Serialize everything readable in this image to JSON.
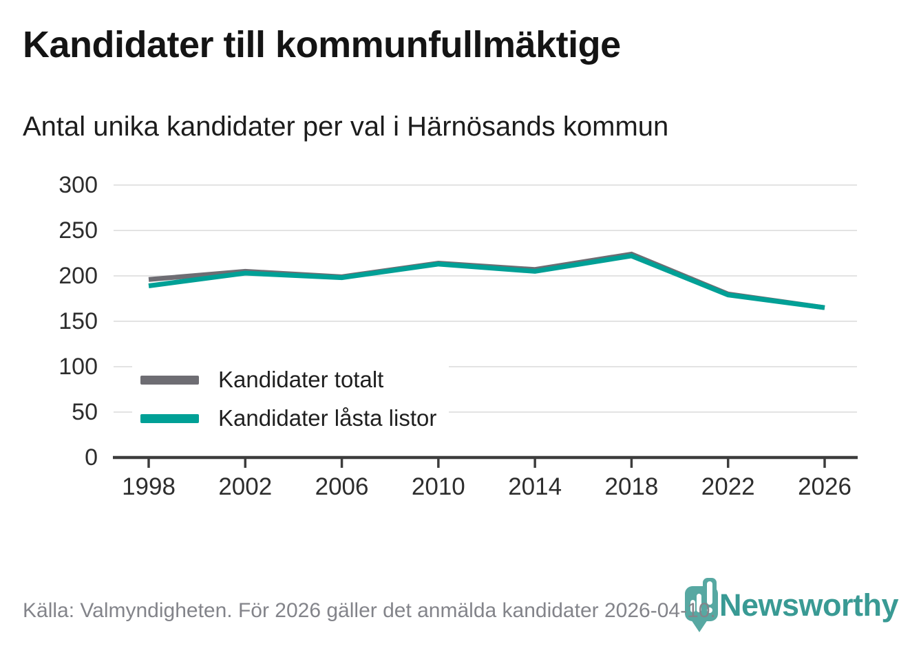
{
  "header": {
    "title": "Kandidater till kommunfullmäktige",
    "subtitle": "Antal unika kandidater per val i Härnösands kommun"
  },
  "chart_data": {
    "type": "line",
    "title": "Kandidater till kommunfullmäktige",
    "subtitle": "Antal unika kandidater per val i Härnösands kommun",
    "x": [
      1998,
      2002,
      2006,
      2010,
      2014,
      2018,
      2022,
      2026
    ],
    "series": [
      {
        "name": "Kandidater totalt",
        "color": "#6e6d73",
        "values": [
          196,
          205,
          199,
          214,
          207,
          224,
          180,
          165
        ]
      },
      {
        "name": "Kandidater låsta listor",
        "color": "#00a096",
        "values": [
          189,
          203,
          198,
          213,
          205,
          222,
          179,
          165
        ]
      }
    ],
    "xlabel": "",
    "ylabel": "",
    "ylim": [
      0,
      300
    ],
    "yticks": [
      0,
      50,
      100,
      150,
      200,
      250,
      300
    ],
    "grid": "horizontal",
    "legend_position": "inside-left-middle",
    "grid_color": "#e3e3e3",
    "axis_color": "#3d3d3d"
  },
  "footer": {
    "source_text": "Källa: Valmyndigheten. För 2026 gäller det anmälda kandidater 2026-04-10."
  },
  "branding": {
    "logo_text": "Newsworthy",
    "logo_icon": "newsworthy-pin-barchart-icon",
    "logo_color": "#399a94",
    "pin_color": "#4ba29b"
  }
}
